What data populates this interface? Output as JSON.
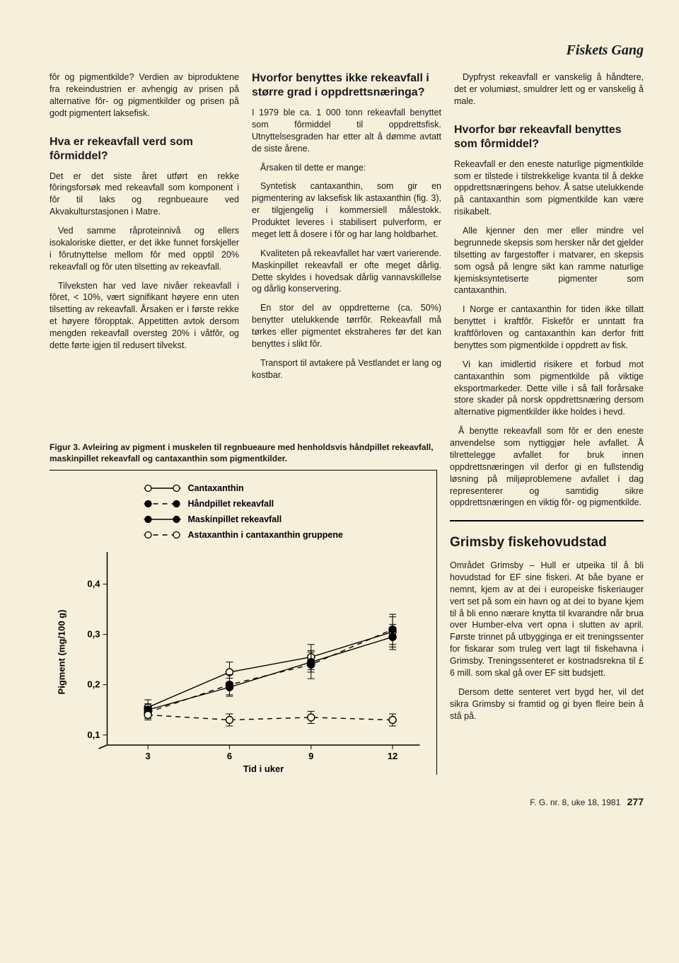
{
  "header": {
    "journal": "Fiskets Gang"
  },
  "col1": {
    "p1": "fôr og pigmentkilde? Verdien av biproduktene fra rekeindustrien er avhengig av prisen på alternative fôr- og pigmentkilder og prisen på godt pigmentert laksefisk.",
    "h1": "Hva er rekeavfall verd som fôrmiddel?",
    "p2": "Det er det siste året utført en rekke fôringsforsøk med rekeavfall som komponent i fôr til laks og regnbueaure ved Akvakulturstasjonen i Matre.",
    "p3": "Ved samme råproteinnivå og ellers isokaloriske dietter, er det ikke funnet forskjeller i fôrutnyttelse mellom fôr med opptil 20% rekeavfall og fôr uten tilsetting av rekeavfall.",
    "p4": "Tilveksten har ved lave nivåer rekeavfall i fôret, < 10%, vært signifikant høyere enn uten tilsetting av rekeavfall. Årsaken er i første rekke et høyere fôropptak. Appetitten avtok dersom mengden rekeavfall oversteg 20% i våtfôr, og dette førte igjen til redusert tilvekst."
  },
  "col2": {
    "h1": "Hvorfor benyttes ikke rekeavfall i større grad i oppdrettsnæringa?",
    "p1": "I 1979 ble ca. 1 000 tonn rekeavfall benyttet som fôrmiddel til oppdrettsfisk. Utnyttelsesgraden har etter alt å dømme avtatt de siste årene.",
    "p2": "Årsaken til dette er mange:",
    "p3": "Syntetisk cantaxanthin, som gir en pigmentering av laksefisk lik astaxanthin (fig. 3), er tilgjengelig i kommersiell målestokk. Produktet leveres i stabilisert pulverform, er meget lett å dosere i fôr og har lang holdbarhet.",
    "p4": "Kvaliteten på rekeavfallet har vært varierende. Maskinpillet rekeavfall er ofte meget dårlig. Dette skyldes i hovedsak dårlig vannavskillelse og dårlig konservering.",
    "p5": "En stor del av oppdretterne (ca. 50%) benytter utelukkende tørrfôr. Rekeavfall må tørkes eller pigmentet ekstraheres før det kan benyttes i slikt fôr.",
    "p6": "Transport til avtakere på Vestlandet er lang og kostbar."
  },
  "col3": {
    "p1": "Dypfryst rekeavfall er vanskelig å håndtere, det er volumiøst, smuldrer lett og er vanskelig å male.",
    "h1": "Hvorfor bør rekeavfall benyttes som fôrmiddel?",
    "p2": "Rekeavfall er den eneste naturlige pigmentkilde som er tilstede i tilstrekkelige kvanta til å dekke oppdrettsnæringens behov. Å satse utelukkende på cantaxanthin som pigmentkilde kan være risikabelt.",
    "p3": "Alle kjenner den mer eller mindre vel begrunnede skepsis som hersker når det gjelder tilsetting av fargestoffer i matvarer, en skepsis som også på lengre sikt kan ramme naturlige kjemisksyntetiserte pigmenter som cantaxanthin.",
    "p4": "I Norge er cantaxanthin for tiden ikke tillatt benyttet i kraftfôr. Fiskefôr er unntatt fra kraftfôrloven og cantaxanthin kan derfor fritt benyttes som pigmentkilde i oppdrett av fisk.",
    "p5": "Vi kan imidlertid risikere et forbud mot cantaxanthin som pigmentkilde på viktige eksportmarkeder. Dette ville i så fall forårsake store skader på norsk oppdrettsnæring dersom alternative pigmentkilder ikke holdes i hevd.",
    "p6": "Å benytte rekeavfall som fôr er den eneste anvendelse som nyttiggjør hele avfallet. Å tilrettelegge avfallet for bruk innen oppdrettsnæringen vil derfor gi en fullstendig løsning på miljøproblemene avfallet i dag representerer og samtidig sikre oppdrettsnæringen en viktig fôr- og pigmentkilde.",
    "h2": "Grimsby fiskehovudstad",
    "p7": "Området Grimsby – Hull er utpeika til å bli hovudstad for EF sine fiskeri. At båe byane er nemnt, kjem av at dei i europeiske fiskeriauger vert set på som ein havn og at dei to byane kjem til å bli enno nærare knytta til kvarandre når brua over Humber-elva vert opna i slutten av april. Første trinnet på utbygginga er eit treningssenter for fiskarar som truleg vert lagt til fiskehavna i Grimsby. Treningssenteret er kostnadsrekna til £ 6 mill. som skal gå over EF sitt budsjett.",
    "p8": "Dersom dette senteret vert bygd her, vil det sikra Grimsby si framtid og gi byen fleire bein å stå på."
  },
  "figure": {
    "caption": "Figur 3. Avleiring av pigment i muskelen til regnbueaure med henholdsvis håndpillet rekeavfall, maskinpillet rekeavfall og cantaxanthin som pigmentkilder.",
    "legend": {
      "s1": "Cantaxanthin",
      "s2": "Håndpillet rekeavfall",
      "s3": "Maskinpillet rekeavfall",
      "s4": "Astaxanthin i cantaxanthin gruppene"
    },
    "ylabel": "Pigment (mg/100 g)",
    "xlabel": "Tid i uker",
    "xticks": [
      "3",
      "6",
      "9",
      "12"
    ],
    "yticks": [
      "0,1",
      "0,2",
      "0,3",
      "0,4"
    ],
    "colors": {
      "stroke": "#000000",
      "bg": "#f5efdb"
    },
    "series": {
      "cantaxanthin": {
        "x": [
          3,
          6,
          9,
          12
        ],
        "y": [
          0.155,
          0.225,
          0.255,
          0.305
        ],
        "err": [
          0.015,
          0.02,
          0.025,
          0.03
        ],
        "marker": "open",
        "dash": "solid"
      },
      "handpillet": {
        "x": [
          3,
          6,
          9,
          12
        ],
        "y": [
          0.145,
          0.2,
          0.24,
          0.31
        ],
        "err": [
          0.012,
          0.02,
          0.028,
          0.03
        ],
        "marker": "solid",
        "dash": "dashed"
      },
      "maskinpillet": {
        "x": [
          3,
          6,
          9,
          12
        ],
        "y": [
          0.15,
          0.195,
          0.245,
          0.295
        ],
        "err": [
          0.012,
          0.018,
          0.02,
          0.025
        ],
        "marker": "solid",
        "dash": "solid"
      },
      "astaxanthin": {
        "x": [
          3,
          6,
          9,
          12
        ],
        "y": [
          0.14,
          0.13,
          0.135,
          0.13
        ],
        "err": [
          0.01,
          0.012,
          0.012,
          0.012
        ],
        "marker": "open",
        "dash": "dashed"
      }
    },
    "xlim": [
      1.5,
      13
    ],
    "ylim": [
      0.08,
      0.45
    ]
  },
  "footer": {
    "ref": "F. G. nr. 8, uke 18, 1981",
    "page": "277"
  }
}
